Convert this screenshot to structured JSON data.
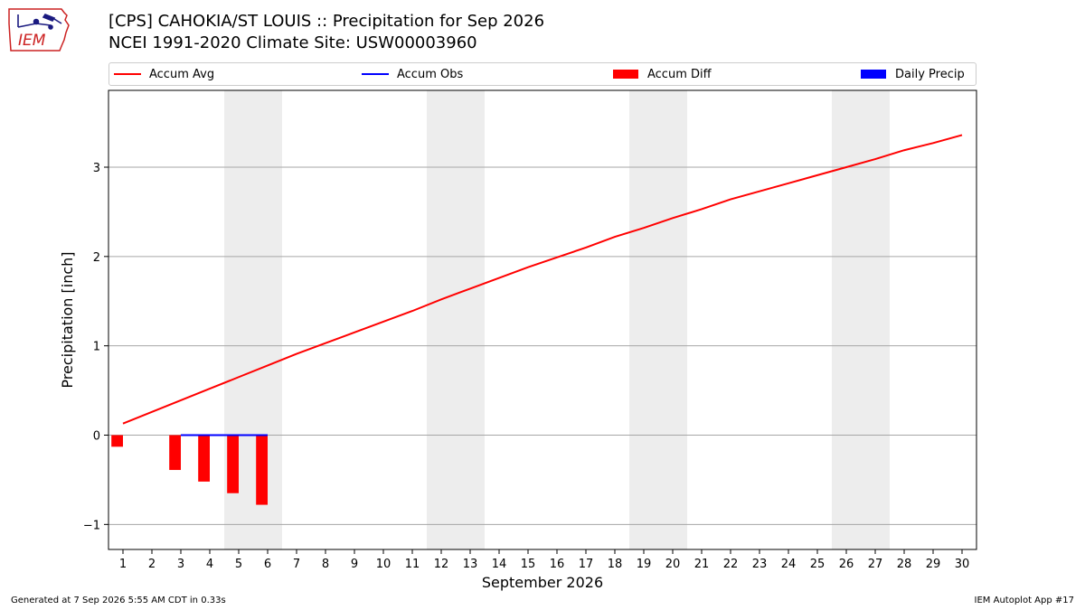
{
  "header": {
    "title": "[CPS] CAHOKIA/ST LOUIS :: Precipitation for Sep 2026",
    "subtitle": "NCEI 1991-2020 Climate Site: USW00003960",
    "logo_text": "IEM"
  },
  "footer": {
    "generated": "Generated at 7 Sep 2026 5:55 AM CDT in 0.33s",
    "app": "IEM Autoplot App #17"
  },
  "chart_data": {
    "type": "bar",
    "xlabel": "September 2026",
    "ylabel": "Precipitation [inch]",
    "x": [
      1,
      2,
      3,
      4,
      5,
      6,
      7,
      8,
      9,
      10,
      11,
      12,
      13,
      14,
      15,
      16,
      17,
      18,
      19,
      20,
      21,
      22,
      23,
      24,
      25,
      26,
      27,
      28,
      29,
      30
    ],
    "xlim": [
      0.5,
      30.5
    ],
    "ylim": [
      -1.28,
      3.86
    ],
    "yticks": [
      -1,
      0,
      1,
      2,
      3
    ],
    "ytick_labels": [
      "−1",
      "0",
      "1",
      "2",
      "3"
    ],
    "grid": "horizontal",
    "legend_position": "top",
    "weekend_bands": [
      [
        5,
        6
      ],
      [
        12,
        13
      ],
      [
        19,
        20
      ],
      [
        26,
        27
      ]
    ],
    "series": [
      {
        "name": "Accum Avg",
        "kind": "line",
        "color": "#ff0000",
        "x": [
          1,
          2,
          3,
          4,
          5,
          6,
          7,
          8,
          9,
          10,
          11,
          12,
          13,
          14,
          15,
          16,
          17,
          18,
          19,
          20,
          21,
          22,
          23,
          24,
          25,
          26,
          27,
          28,
          29,
          30
        ],
        "values": [
          0.13,
          0.26,
          0.39,
          0.52,
          0.65,
          0.78,
          0.91,
          1.03,
          1.15,
          1.27,
          1.39,
          1.52,
          1.64,
          1.76,
          1.88,
          1.99,
          2.1,
          2.22,
          2.32,
          2.43,
          2.53,
          2.64,
          2.73,
          2.82,
          2.91,
          3.0,
          3.09,
          3.19,
          3.27,
          3.36
        ]
      },
      {
        "name": "Accum Obs",
        "kind": "line",
        "color": "#0000ff",
        "x": [
          3,
          4,
          5,
          6
        ],
        "values": [
          0.0,
          0.0,
          0.0,
          0.0
        ]
      },
      {
        "name": "Accum Diff",
        "kind": "bar",
        "color": "#ff0000",
        "x": [
          1,
          3,
          4,
          5,
          6
        ],
        "values": [
          -0.13,
          -0.39,
          -0.52,
          -0.65,
          -0.78
        ]
      },
      {
        "name": "Daily Precip",
        "kind": "bar",
        "color": "#0000ff",
        "x": [],
        "values": []
      }
    ]
  }
}
